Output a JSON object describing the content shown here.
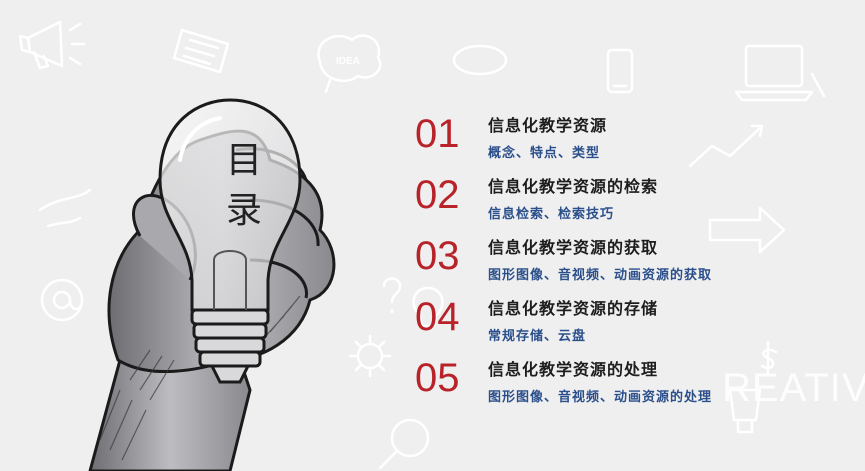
{
  "slide": {
    "toc_title_chars": [
      "目",
      "录"
    ],
    "watermark_text": "REATIVE",
    "doodle_idea_text": "IDEA"
  },
  "agenda": {
    "items": [
      {
        "num": "01",
        "title": "信息化教学资源",
        "subtitle": "概念、特点、类型"
      },
      {
        "num": "02",
        "title": "信息化教学资源的检索",
        "subtitle": "信息检索、检索技巧"
      },
      {
        "num": "03",
        "title": "信息化教学资源的获取",
        "subtitle": "图形图像、音视频、动画资源的获取"
      },
      {
        "num": "04",
        "title": "信息化教学资源的存储",
        "subtitle": "常规存储、云盘"
      },
      {
        "num": "05",
        "title": "信息化教学资源的处理",
        "subtitle": "图形图像、音视频、动画资源的处理"
      }
    ]
  },
  "colors": {
    "background": "#efeff0",
    "number_red": "#b8232a",
    "title_dark": "#1d1d1d",
    "subtitle_blue": "#2b4f8a"
  }
}
